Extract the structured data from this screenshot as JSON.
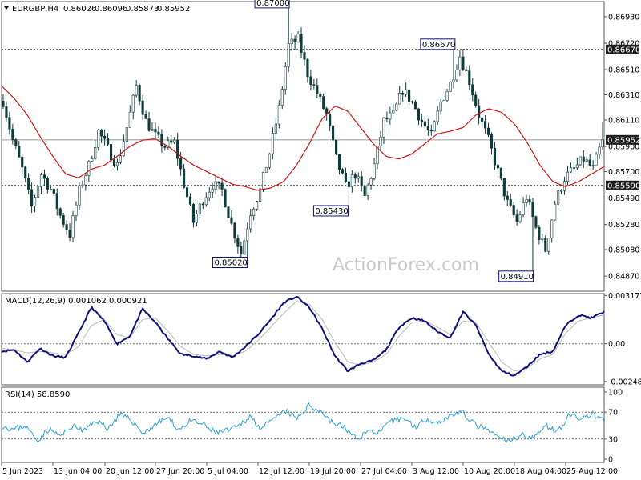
{
  "watermark": "ActionForex.com",
  "chart_data": [
    {
      "type": "candlestick",
      "name": "price",
      "header": {
        "symbol": "EURGBP,H4",
        "ohlc": [
          "0.86026",
          "0.86096",
          "0.85873",
          "0.85952"
        ]
      },
      "ylim": [
        0.8475,
        0.8705
      ],
      "y_ticks": [
        "0.86930",
        "0.86720",
        "0.86510",
        "0.86310",
        "0.86110",
        "0.85900",
        "0.85700",
        "0.85490",
        "0.85280",
        "0.85080",
        "0.84870"
      ],
      "y_tick_values": [
        0.8693,
        0.8672,
        0.8651,
        0.8631,
        0.8611,
        0.859,
        0.857,
        0.8549,
        0.8528,
        0.8508,
        0.8487
      ],
      "close_path": [
        0.8626,
        0.8595,
        0.8572,
        0.8542,
        0.8568,
        0.8556,
        0.8535,
        0.852,
        0.8555,
        0.8575,
        0.8602,
        0.8588,
        0.8575,
        0.8605,
        0.8638,
        0.861,
        0.8598,
        0.859,
        0.8593,
        0.856,
        0.853,
        0.8548,
        0.856,
        0.8555,
        0.8528,
        0.8505,
        0.8538,
        0.8555,
        0.8585,
        0.862,
        0.867,
        0.8675,
        0.8648,
        0.8632,
        0.8615,
        0.858,
        0.8558,
        0.8568,
        0.855,
        0.8575,
        0.861,
        0.8615,
        0.8635,
        0.8625,
        0.861,
        0.8598,
        0.8625,
        0.864,
        0.8662,
        0.8642,
        0.8615,
        0.8595,
        0.857,
        0.8545,
        0.853,
        0.855,
        0.8525,
        0.8508,
        0.8545,
        0.8565,
        0.8572,
        0.858,
        0.8572,
        0.8595
      ],
      "ma_path": [
        0.8638,
        0.8628,
        0.8615,
        0.8598,
        0.8582,
        0.8568,
        0.8565,
        0.8572,
        0.8575,
        0.8582,
        0.859,
        0.8595,
        0.8596,
        0.859,
        0.8582,
        0.8575,
        0.857,
        0.8565,
        0.856,
        0.8558,
        0.8555,
        0.8557,
        0.8562,
        0.8575,
        0.8592,
        0.8612,
        0.8622,
        0.8618,
        0.8605,
        0.8592,
        0.8582,
        0.858,
        0.8584,
        0.8592,
        0.86,
        0.8602,
        0.8605,
        0.8615,
        0.862,
        0.8617,
        0.8608,
        0.8593,
        0.8575,
        0.8562,
        0.8558,
        0.8562,
        0.8568,
        0.8574
      ],
      "ma_ylim_note": "",
      "hlines": [
        {
          "value": 0.8667,
          "label": "0.86670",
          "style": "dashed"
        },
        {
          "value": 0.8559,
          "label": "0.85590",
          "style": "dashed"
        },
        {
          "value": 0.85952,
          "label": "",
          "style": "solid"
        }
      ],
      "price_tag": "0.85952",
      "annotations": [
        {
          "label": "0.87000",
          "value": 0.87,
          "at": 0.4775
        },
        {
          "label": "0.86670",
          "value": 0.8667,
          "at": 0.7525
        },
        {
          "label": "0.85430",
          "value": 0.8543,
          "at": 0.575
        },
        {
          "label": "0.85020",
          "value": 0.8502,
          "at": 0.4075
        },
        {
          "label": "0.84910",
          "value": 0.8491,
          "at": 0.8825
        }
      ]
    },
    {
      "type": "line",
      "name": "macd",
      "header": "MACD(12,26,9) 0.001062 0.000921",
      "ylim": [
        -0.0027,
        0.0033
      ],
      "y_ticks": [
        "0.003177",
        "0.00",
        "-0.002482"
      ],
      "y_tick_values": [
        0.003177,
        0.0,
        -0.002482
      ],
      "macd_path": [
        -0.0005,
        -0.0004,
        -0.0012,
        -0.0003,
        -0.0008,
        -0.0009,
        0.0007,
        0.0024,
        0.0015,
        0.0,
        0.0005,
        0.0023,
        0.0014,
        0.0003,
        -0.0007,
        -0.0008,
        -0.001,
        -0.0005,
        -0.0009,
        -0.0002,
        0.0006,
        0.0016,
        0.0027,
        0.0031,
        0.0024,
        0.001,
        -0.0008,
        -0.0018,
        -0.0013,
        -0.0011,
        -0.0004,
        0.0011,
        0.0017,
        0.0015,
        0.0008,
        0.0004,
        0.0021,
        0.0012,
        -0.0007,
        -0.0018,
        -0.0021,
        -0.0015,
        -0.0007,
        -0.0005,
        0.0012,
        0.0019,
        0.0017,
        0.0021
      ],
      "signal_path": [
        -0.0003,
        -0.0004,
        -0.0006,
        -0.0005,
        -0.0006,
        -0.0007,
        -0.0002,
        0.0012,
        0.0016,
        0.0006,
        0.0004,
        0.0016,
        0.0017,
        0.0008,
        -0.0002,
        -0.0007,
        -0.0008,
        -0.0007,
        -0.0008,
        -0.0005,
        0.0002,
        0.0011,
        0.002,
        0.0028,
        0.0026,
        0.0016,
        0.0001,
        -0.0012,
        -0.0014,
        -0.0012,
        -0.0007,
        0.0005,
        0.0014,
        0.0015,
        0.0011,
        0.0006,
        0.0015,
        0.0014,
        0.0001,
        -0.0012,
        -0.0018,
        -0.0016,
        -0.001,
        -0.0007,
        0.0007,
        0.0015,
        0.0017,
        0.0019
      ]
    },
    {
      "type": "line",
      "name": "rsi",
      "header": "RSI(14) 58.8590",
      "ylim": [
        0,
        100
      ],
      "y_ticks": [
        "100",
        "70",
        "30",
        "0"
      ],
      "y_tick_values": [
        100,
        70,
        30,
        0
      ],
      "levels": [
        70,
        30
      ],
      "rsi_path": [
        50,
        44,
        50,
        28,
        45,
        34,
        50,
        42,
        58,
        46,
        66,
        58,
        38,
        52,
        62,
        44,
        57,
        52,
        40,
        42,
        48,
        64,
        46,
        58,
        72,
        60,
        80,
        72,
        54,
        48,
        30,
        42,
        40,
        56,
        62,
        48,
        60,
        54,
        66,
        70,
        52,
        44,
        33,
        26,
        38,
        30,
        52,
        40,
        65,
        60,
        67,
        58
      ]
    }
  ],
  "x_axis": {
    "labels": [
      "5 Jun 2023",
      "13 Jun 04:00",
      "20 Jun 12:00",
      "27 Jun 20:00",
      "5 Jul 04:00",
      "12 Jul 12:00",
      "19 Jul 20:00",
      "27 Jul 04:00",
      "3 Aug 12:00",
      "10 Aug 20:00",
      "18 Aug 04:00",
      "25 Aug 12:00"
    ]
  },
  "colors": {
    "candles": "#0f3a3a",
    "ma": "#d01414",
    "macd": "#10107a",
    "signal": "#b8b8b8",
    "rsi": "#2aa1d6",
    "grid": "#666666",
    "tag_bg": "#1f1f1f"
  }
}
